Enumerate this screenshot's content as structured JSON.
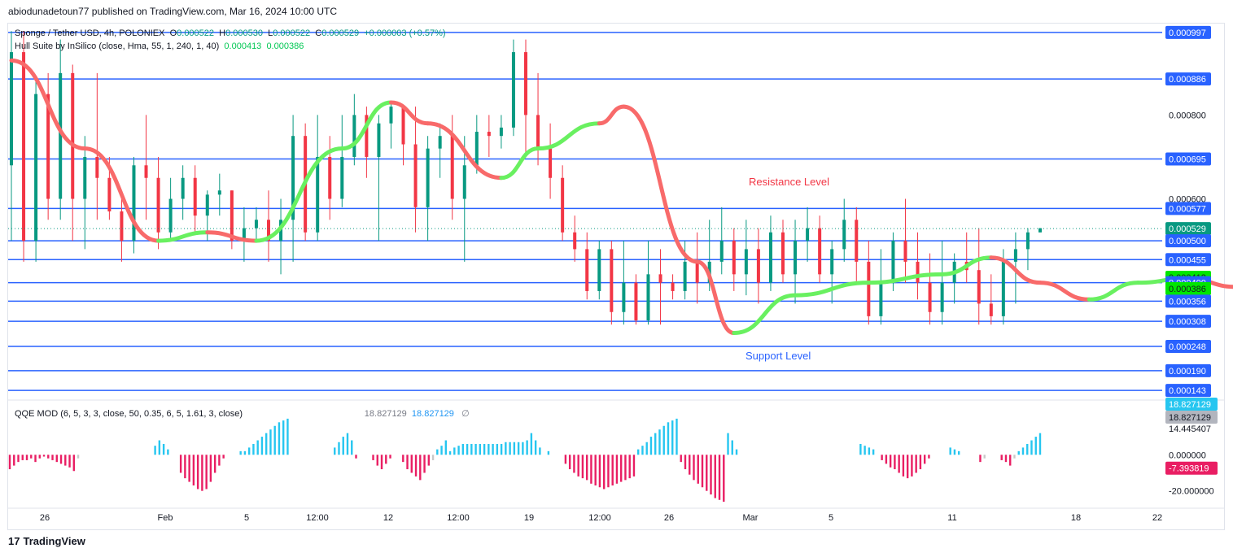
{
  "header": {
    "published": "abiodunadetoun77 published on TradingView.com, Mar 16, 2024 10:00 UTC"
  },
  "legend": {
    "symbol": "Sponge / Tether USD, 4h, POLONIEX",
    "o_label": "O",
    "o": "0.000522",
    "h_label": "H",
    "h": "0.000530",
    "l_label": "L",
    "l": "0.000522",
    "c_label": "C",
    "c": "0.000529",
    "change": "+0.000003 (+0.57%)",
    "hull_name": "Hull Suite by InSilico (close, Hma, 55, 1, 240, 1, 40)",
    "hull_v1": "0.000413",
    "hull_v2": "0.000386",
    "qqe_name": "QQE MOD (6, 5, 3, 3, close, 50, 0.35, 6, 5, 1.61, 3, close)",
    "qqe_v1": "18.827129",
    "qqe_v2": "18.827129",
    "qqe_v3": "∅"
  },
  "footer": {
    "brand": "TradingView",
    "logo_glyph": "17"
  },
  "colors": {
    "up": "#089981",
    "down": "#f23645",
    "level": "#2962ff",
    "hma_up": "#69f060",
    "hma_down": "#f86a6a",
    "qqe_up": "#26c6f0",
    "qqe_down": "#e91e63",
    "qqe_neutral": "#c8c8c8"
  },
  "chart_data": [
    {
      "type": "candlestick",
      "title": "Sponge / Tether USD, 4h, POLONIEX",
      "ylim": [
        0.00012,
        0.00102
      ],
      "y_ticks": [
        "0.000800",
        "0.000600"
      ],
      "x_ticks": [
        "26",
        "Feb",
        "5",
        "12:00",
        "12",
        "12:00",
        "19",
        "12:00",
        "26",
        "Mar",
        "5",
        "11",
        "18",
        "22"
      ],
      "horizontal_levels": [
        "0.000997",
        "0.000886",
        "0.000695",
        "0.000577",
        "0.000500",
        "0.000455",
        "0.000400",
        "0.000356",
        "0.000308",
        "0.000248",
        "0.000190",
        "0.000143"
      ],
      "level_values": [
        0.000997,
        0.000886,
        0.000695,
        0.000577,
        0.0005,
        0.000455,
        0.0004,
        0.000356,
        0.000308,
        0.000248,
        0.00019,
        0.000143
      ],
      "price_labels": [
        {
          "text": "0.000997",
          "value": 0.000997,
          "kind": "level"
        },
        {
          "text": "0.000886",
          "value": 0.000886,
          "kind": "level"
        },
        {
          "text": "0.000695",
          "value": 0.000695,
          "kind": "level"
        },
        {
          "text": "0.000577",
          "value": 0.000577,
          "kind": "level"
        },
        {
          "text": "0.000529",
          "value": 0.000529,
          "kind": "last"
        },
        {
          "text": "0.000500",
          "value": 0.0005,
          "kind": "level"
        },
        {
          "text": "0.000455",
          "value": 0.000455,
          "kind": "level"
        },
        {
          "text": "0.000413",
          "value": 0.000413,
          "kind": "hma"
        },
        {
          "text": "0.000400",
          "value": 0.0004,
          "kind": "level"
        },
        {
          "text": "0.000386",
          "value": 0.000386,
          "kind": "hma"
        },
        {
          "text": "0.000356",
          "value": 0.000356,
          "kind": "level"
        },
        {
          "text": "0.000308",
          "value": 0.000308,
          "kind": "level"
        },
        {
          "text": "0.000248",
          "value": 0.000248,
          "kind": "level"
        },
        {
          "text": "0.000190",
          "value": 0.00019,
          "kind": "level"
        },
        {
          "text": "0.000143",
          "value": 0.000143,
          "kind": "level"
        }
      ],
      "annotations": [
        {
          "text": "Resistance Level",
          "value": 0.00064,
          "color": "#f23645"
        },
        {
          "text": "Support Level",
          "value": 0.000225,
          "color": "#2962ff"
        }
      ],
      "last_price": 0.000529,
      "candles": [
        [
          0.00068,
          0.001,
          0.0005,
          0.00095
        ],
        [
          0.00095,
          0.001,
          0.00045,
          0.0005
        ],
        [
          0.0005,
          0.00088,
          0.00045,
          0.00085
        ],
        [
          0.00085,
          0.0009,
          0.00055,
          0.0006
        ],
        [
          0.0006,
          0.00098,
          0.00055,
          0.0009
        ],
        [
          0.0009,
          0.00092,
          0.0005,
          0.0006
        ],
        [
          0.0006,
          0.00075,
          0.00048,
          0.0007
        ],
        [
          0.0007,
          0.0009,
          0.00055,
          0.00065
        ],
        [
          0.00065,
          0.0007,
          0.00055,
          0.00057
        ],
        [
          0.00057,
          0.0006,
          0.00045,
          0.0005
        ],
        [
          0.0005,
          0.0007,
          0.00047,
          0.00068
        ],
        [
          0.00068,
          0.0008,
          0.00055,
          0.00065
        ],
        [
          0.00065,
          0.0007,
          0.00048,
          0.00052
        ],
        [
          0.00052,
          0.00065,
          0.0005,
          0.0006
        ],
        [
          0.0006,
          0.00068,
          0.00055,
          0.00065
        ],
        [
          0.00065,
          0.00068,
          0.00052,
          0.00056
        ],
        [
          0.00056,
          0.00062,
          0.0005,
          0.00061
        ],
        [
          0.00061,
          0.00066,
          0.00056,
          0.00062
        ],
        [
          0.00062,
          0.00062,
          0.00048,
          0.0005
        ],
        [
          0.0005,
          0.00058,
          0.00045,
          0.00053
        ],
        [
          0.00053,
          0.00058,
          0.0005,
          0.00055
        ],
        [
          0.00055,
          0.00062,
          0.00045,
          0.0005
        ],
        [
          0.0005,
          0.0006,
          0.00042,
          0.00055
        ],
        [
          0.00055,
          0.0008,
          0.00045,
          0.00075
        ],
        [
          0.00075,
          0.00078,
          0.0005,
          0.00052
        ],
        [
          0.00052,
          0.0008,
          0.0005,
          0.0007
        ],
        [
          0.0007,
          0.00075,
          0.00055,
          0.0006
        ],
        [
          0.0006,
          0.0008,
          0.00058,
          0.0007
        ],
        [
          0.0007,
          0.00085,
          0.00068,
          0.0008
        ],
        [
          0.0008,
          0.00082,
          0.00065,
          0.0007
        ],
        [
          0.0007,
          0.0008,
          0.0005,
          0.00078
        ],
        [
          0.00078,
          0.00083,
          0.00072,
          0.00082
        ],
        [
          0.00082,
          0.00082,
          0.00068,
          0.00073
        ],
        [
          0.00073,
          0.00082,
          0.00052,
          0.00058
        ],
        [
          0.00058,
          0.00075,
          0.0005,
          0.00072
        ],
        [
          0.00072,
          0.00078,
          0.00065,
          0.00075
        ],
        [
          0.00075,
          0.0008,
          0.00055,
          0.0006
        ],
        [
          0.0006,
          0.00075,
          0.00045,
          0.00068
        ],
        [
          0.00068,
          0.0008,
          0.00066,
          0.00076
        ],
        [
          0.00076,
          0.0008,
          0.0007,
          0.00075
        ],
        [
          0.00075,
          0.0008,
          0.00072,
          0.00077
        ],
        [
          0.00077,
          0.00098,
          0.00075,
          0.00095
        ],
        [
          0.00095,
          0.00098,
          0.0007,
          0.0008
        ],
        [
          0.0008,
          0.0009,
          0.00068,
          0.00072
        ],
        [
          0.00072,
          0.00078,
          0.0006,
          0.00065
        ],
        [
          0.00065,
          0.00068,
          0.0005,
          0.00052
        ],
        [
          0.00052,
          0.00056,
          0.00045,
          0.00048
        ],
        [
          0.00048,
          0.00052,
          0.00036,
          0.00038
        ],
        [
          0.00038,
          0.0005,
          0.00036,
          0.00048
        ],
        [
          0.00048,
          0.0005,
          0.0003,
          0.00033
        ],
        [
          0.00033,
          0.0005,
          0.0003,
          0.0004
        ],
        [
          0.0004,
          0.00042,
          0.0003,
          0.00031
        ],
        [
          0.00031,
          0.0005,
          0.0003,
          0.00042
        ],
        [
          0.00042,
          0.00048,
          0.0003,
          0.0004
        ],
        [
          0.0004,
          0.00042,
          0.00036,
          0.00038
        ],
        [
          0.00038,
          0.0005,
          0.00036,
          0.00045
        ],
        [
          0.00045,
          0.00052,
          0.00035,
          0.0004
        ],
        [
          0.0004,
          0.00055,
          0.00038,
          0.00045
        ],
        [
          0.00045,
          0.00058,
          0.00042,
          0.0005
        ],
        [
          0.0005,
          0.00053,
          0.00038,
          0.00042
        ],
        [
          0.00042,
          0.00055,
          0.00037,
          0.00048
        ],
        [
          0.00048,
          0.00053,
          0.00035,
          0.0004
        ],
        [
          0.0004,
          0.00056,
          0.00038,
          0.00052
        ],
        [
          0.00052,
          0.00055,
          0.0004,
          0.00042
        ],
        [
          0.00042,
          0.00055,
          0.00035,
          0.0005
        ],
        [
          0.0005,
          0.00058,
          0.00045,
          0.00053
        ],
        [
          0.00053,
          0.00056,
          0.0004,
          0.00042
        ],
        [
          0.00042,
          0.0005,
          0.00035,
          0.00048
        ],
        [
          0.00048,
          0.0006,
          0.00045,
          0.00055
        ],
        [
          0.00055,
          0.00058,
          0.0004,
          0.00045
        ],
        [
          0.00045,
          0.0005,
          0.0003,
          0.00032
        ],
        [
          0.00032,
          0.00048,
          0.0003,
          0.0004
        ],
        [
          0.0004,
          0.00052,
          0.00038,
          0.0005
        ],
        [
          0.0005,
          0.0006,
          0.0004,
          0.00045
        ],
        [
          0.00045,
          0.00052,
          0.00036,
          0.0004
        ],
        [
          0.0004,
          0.00047,
          0.0003,
          0.00033
        ],
        [
          0.00033,
          0.0005,
          0.0003,
          0.0004
        ],
        [
          0.0004,
          0.00047,
          0.00035,
          0.00045
        ],
        [
          0.00045,
          0.00052,
          0.0004,
          0.00043
        ],
        [
          0.00043,
          0.00053,
          0.0003,
          0.00035
        ],
        [
          0.00035,
          0.00042,
          0.0003,
          0.00032
        ],
        [
          0.00032,
          0.00048,
          0.0003,
          0.00045
        ],
        [
          0.00045,
          0.00052,
          0.00035,
          0.00048
        ],
        [
          0.00048,
          0.00053,
          0.00043,
          0.00052
        ],
        [
          0.00052,
          0.00053,
          0.00052,
          0.00053
        ]
      ],
      "hma": [
        [
          0,
          0.00093,
          0
        ],
        [
          6,
          0.00072,
          0
        ],
        [
          12,
          0.0005,
          0
        ],
        [
          16,
          0.00052,
          1
        ],
        [
          20,
          0.0005,
          0
        ],
        [
          27,
          0.00072,
          1
        ],
        [
          31,
          0.00083,
          1
        ],
        [
          34,
          0.00078,
          0
        ],
        [
          40,
          0.00065,
          0
        ],
        [
          43,
          0.00072,
          1
        ],
        [
          48,
          0.00078,
          1
        ],
        [
          50,
          0.00082,
          0
        ],
        [
          56,
          0.00045,
          0
        ],
        [
          59,
          0.00028,
          0
        ],
        [
          64,
          0.00037,
          1
        ],
        [
          70,
          0.0004,
          1
        ],
        [
          76,
          0.00042,
          1
        ],
        [
          80,
          0.00046,
          1
        ],
        [
          84,
          0.0004,
          0
        ],
        [
          88,
          0.00036,
          0
        ],
        [
          92,
          0.0004,
          1
        ],
        [
          96,
          0.00041,
          1
        ],
        [
          100,
          0.00039,
          0
        ],
        [
          104,
          0.00037,
          0
        ],
        [
          107,
          0.00037,
          1
        ],
        [
          110,
          0.00041,
          1
        ]
      ],
      "hma_ticks": [
        "0.000413",
        "0.000386"
      ]
    },
    {
      "type": "bar",
      "title": "QQE MOD (6, 5, 3, 3, close, 50, 0.35, 6, 5, 1.61, 3, close)",
      "ylim": [
        -26,
        24
      ],
      "y_ticks": [
        "14.445407",
        "0.000000",
        "-20.000000"
      ],
      "value_labels": [
        {
          "text": "18.827129",
          "value": 18.827129,
          "kind": "blue"
        },
        {
          "text": "18.827129",
          "value": 18.827129,
          "kind": "gray"
        },
        {
          "text": "-7.393819",
          "value": -7.393819,
          "kind": "pink"
        }
      ],
      "values": [
        -8,
        -6,
        -4,
        -3,
        -3,
        -2,
        -4,
        -2,
        -1,
        -2,
        -3,
        -4,
        -5,
        -6,
        -7,
        -9,
        -2,
        0,
        0,
        0,
        0,
        0,
        0,
        0,
        0,
        0,
        0,
        0,
        0,
        0,
        0,
        0,
        0,
        0,
        5,
        8,
        6,
        3,
        0,
        0,
        -10,
        -13,
        -15,
        -17,
        -19,
        -20,
        -19,
        -15,
        -10,
        -6,
        -2,
        0,
        0,
        0,
        2,
        2,
        4,
        6,
        8,
        10,
        12,
        14,
        16,
        18,
        19,
        20,
        0,
        0,
        0,
        0,
        0,
        0,
        0,
        0,
        0,
        0,
        4,
        7,
        10,
        12,
        8,
        -2,
        0,
        0,
        0,
        -3,
        -6,
        -8,
        -5,
        -2,
        0,
        0,
        -4,
        -8,
        -10,
        -12,
        -14,
        -10,
        -6,
        -3,
        3,
        5,
        8,
        2,
        4,
        5,
        6,
        6,
        6,
        6,
        6,
        6,
        6,
        6,
        6,
        6,
        7,
        7,
        7,
        7,
        7,
        8,
        12,
        8,
        4,
        0,
        2,
        0,
        0,
        0,
        -5,
        -8,
        -10,
        -12,
        -13,
        -14,
        -16,
        -17,
        -18,
        -19,
        -18,
        -17,
        -16,
        -15,
        -14,
        -13,
        -12,
        3,
        5,
        7,
        10,
        12,
        14,
        16,
        18,
        19,
        20,
        -4,
        -8,
        -11,
        -14,
        -16,
        -18,
        -20,
        -22,
        -24,
        -25,
        -26,
        12,
        8,
        3,
        0,
        0,
        0,
        0,
        0,
        0,
        0,
        0,
        0,
        0,
        0,
        0,
        0,
        0,
        0,
        0,
        0,
        0,
        0,
        0,
        0,
        0,
        0,
        0,
        0,
        0,
        0,
        0,
        6,
        5,
        4,
        3,
        0,
        -3,
        -5,
        -7,
        -8,
        -10,
        -12,
        -13,
        -12,
        -10,
        -8,
        -5,
        -2,
        0,
        0,
        0,
        0,
        4,
        3,
        2,
        0,
        0,
        0,
        0,
        -4,
        -2,
        0,
        0,
        0,
        -3,
        -4,
        -6,
        -2,
        2,
        4,
        6,
        8,
        10,
        12
      ],
      "neutral_flags": [
        0,
        0,
        0,
        0,
        0,
        0,
        0,
        0,
        0,
        0,
        0,
        0,
        0,
        0,
        0,
        0,
        1,
        0,
        0,
        0,
        0,
        0,
        0,
        0,
        0,
        0,
        0,
        0,
        0,
        0,
        0,
        0,
        0,
        0,
        0,
        0,
        0,
        0,
        0,
        0,
        0,
        0,
        0,
        0,
        0,
        0,
        0,
        0,
        0,
        0,
        0,
        0,
        0,
        0,
        0,
        0,
        0,
        0,
        0,
        0,
        0,
        0,
        0,
        0,
        0,
        0,
        0,
        0,
        0,
        0,
        0,
        0,
        0,
        0,
        0,
        0,
        0,
        0,
        0,
        0,
        0,
        0,
        0,
        0,
        0,
        0,
        0,
        0,
        0,
        0,
        0,
        0,
        0,
        0,
        0,
        0,
        0,
        0,
        0,
        1,
        0,
        0,
        0,
        0,
        0,
        0,
        0,
        0,
        0,
        0,
        0,
        0,
        0,
        0,
        0,
        0,
        0,
        0,
        0,
        0,
        0,
        0,
        0,
        0,
        0,
        0,
        0,
        0,
        0,
        0,
        0,
        0,
        0,
        0,
        0,
        0,
        0,
        0,
        0,
        0,
        0,
        0,
        0,
        0,
        0,
        0,
        0,
        0,
        0,
        0,
        0,
        0,
        0,
        0,
        0,
        0,
        0,
        0,
        0,
        0,
        0,
        0,
        0,
        0,
        0,
        0,
        0,
        0,
        0,
        0,
        0,
        0,
        0,
        0,
        0,
        0,
        0,
        0,
        0,
        0,
        0,
        0,
        0,
        0,
        0,
        0,
        0,
        0,
        0,
        0,
        0,
        0,
        0,
        0,
        0,
        0,
        0,
        0,
        0,
        0,
        0,
        0,
        0,
        0,
        0,
        0,
        0,
        0,
        0,
        0,
        0,
        0,
        0,
        0,
        0,
        0,
        0,
        0,
        0,
        0,
        0,
        0,
        0,
        0,
        0,
        0,
        0,
        0,
        1,
        0,
        0,
        0,
        0,
        0,
        0,
        1,
        0,
        0,
        0,
        0,
        0,
        0
      ]
    }
  ]
}
